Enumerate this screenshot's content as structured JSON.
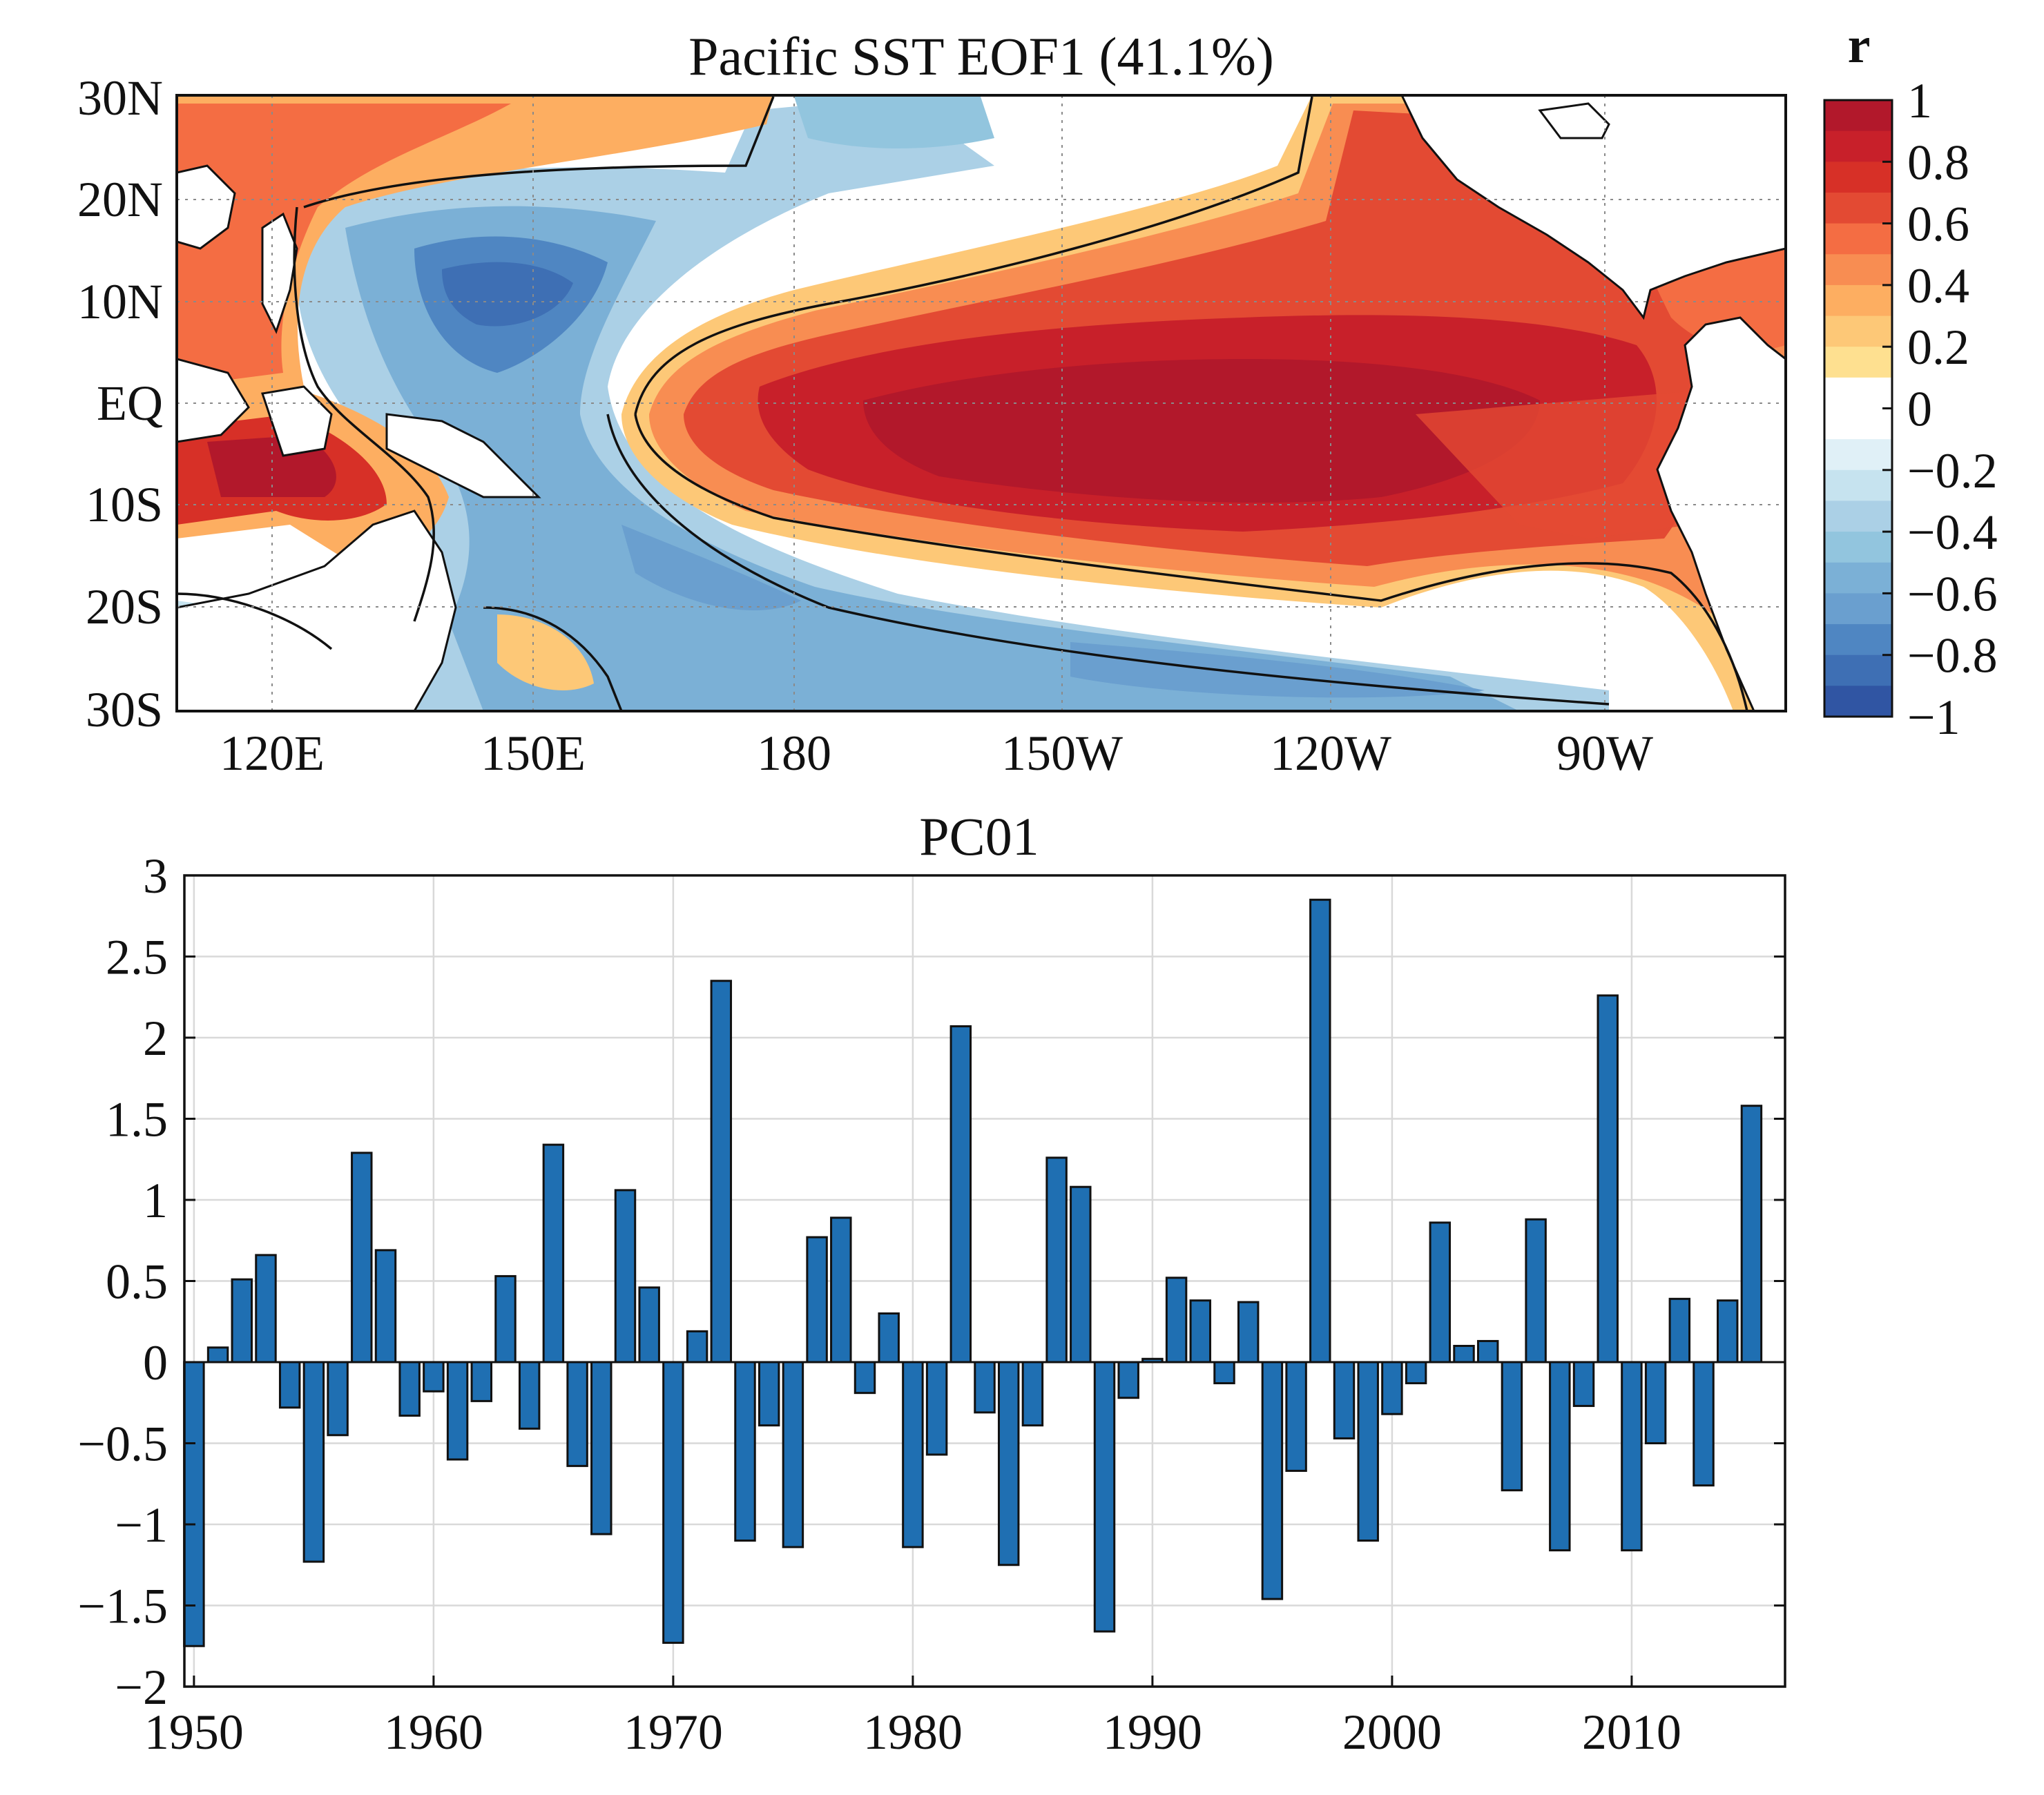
{
  "chart_data": [
    {
      "type": "heatmap",
      "title": "Pacific SST EOF1 (41.1%)",
      "xlabel": "",
      "ylabel": "",
      "x_tick_labels": [
        "120E",
        "150E",
        "180",
        "150W",
        "120W",
        "90W"
      ],
      "x_ticks_deg_east": [
        120,
        150,
        180,
        210,
        240,
        270
      ],
      "y_tick_labels": [
        "30N",
        "20N",
        "10N",
        "EQ",
        "10S",
        "20S",
        "30S"
      ],
      "y_ticks_deg": [
        30,
        20,
        10,
        0,
        -10,
        -20,
        -30
      ],
      "xlim_deg_east": [
        110,
        290
      ],
      "ylim_deg": [
        -30,
        30
      ],
      "colorbar": {
        "label": "r",
        "tick_labels": [
          "1",
          "0.8",
          "0.6",
          "0.4",
          "0.2",
          "0",
          "−0.2",
          "−0.4",
          "−0.6",
          "−0.8",
          "−1"
        ],
        "tick_values": [
          1,
          0.8,
          0.6,
          0.4,
          0.2,
          0,
          -0.2,
          -0.4,
          -0.6,
          -0.8,
          -1
        ],
        "colors_top_to_bottom": [
          "#b2182b",
          "#c8202a",
          "#d73027",
          "#e34a33",
          "#f46d43",
          "#f88d52",
          "#fdae61",
          "#fdc877",
          "#fee090",
          "#ffffff",
          "#ffffff",
          "#e0f0f7",
          "#c6e3ef",
          "#abd0e6",
          "#92c5de",
          "#7bb0d6",
          "#6a9fcf",
          "#4f86c2",
          "#3e6fb4",
          "#3055a3"
        ]
      },
      "grid": true,
      "pattern": "El Nino: strong positive correlation over central/eastern equatorial Pacific, negative horseshoe in western Pacific"
    },
    {
      "type": "bar",
      "title": "PC01",
      "xlabel": "",
      "ylabel": "",
      "x": [
        1950,
        1951,
        1952,
        1953,
        1954,
        1955,
        1956,
        1957,
        1958,
        1959,
        1960,
        1961,
        1962,
        1963,
        1964,
        1965,
        1966,
        1967,
        1968,
        1969,
        1970,
        1971,
        1972,
        1973,
        1974,
        1975,
        1976,
        1977,
        1978,
        1979,
        1980,
        1981,
        1982,
        1983,
        1984,
        1985,
        1986,
        1987,
        1988,
        1989,
        1990,
        1991,
        1992,
        1993,
        1994,
        1995,
        1996,
        1997,
        1998,
        1999,
        2000,
        2001,
        2002,
        2003,
        2004,
        2005,
        2006,
        2007,
        2008,
        2009,
        2010,
        2011,
        2012,
        2013,
        2014,
        2015
      ],
      "values": [
        -1.75,
        0.09,
        0.51,
        0.66,
        -0.28,
        -1.23,
        -0.45,
        1.29,
        0.69,
        -0.33,
        -0.18,
        -0.6,
        -0.24,
        0.53,
        -0.41,
        1.34,
        -0.64,
        -1.06,
        1.06,
        0.46,
        -1.73,
        0.19,
        2.35,
        -1.1,
        -0.39,
        -1.14,
        0.77,
        0.89,
        -0.19,
        0.3,
        -1.14,
        -0.57,
        2.07,
        -0.31,
        -1.25,
        -0.39,
        1.26,
        1.08,
        -1.66,
        -0.22,
        0.02,
        0.52,
        0.38,
        -0.13,
        0.37,
        -1.46,
        -0.67,
        2.85,
        -0.47,
        -1.1,
        -0.32,
        -0.13,
        0.86,
        0.1,
        0.13,
        -0.79,
        0.88,
        -1.16,
        -0.27,
        2.26,
        -1.16,
        -0.5,
        0.39,
        -0.76,
        0.38,
        1.58
      ],
      "x_tick_labels": [
        "1950",
        "1960",
        "1970",
        "1980",
        "1990",
        "2000",
        "2010"
      ],
      "x_ticks": [
        1950,
        1960,
        1970,
        1980,
        1990,
        2000,
        2010
      ],
      "y_tick_labels": [
        "3",
        "2.5",
        "2",
        "1.5",
        "1",
        "0.5",
        "0",
        "−0.5",
        "−1",
        "−1.5",
        "−2"
      ],
      "y_ticks": [
        3,
        2.5,
        2,
        1.5,
        1,
        0.5,
        0,
        -0.5,
        -1,
        -1.5,
        -2
      ],
      "xlim": [
        1949.6,
        2016.4
      ],
      "ylim": [
        -2,
        3
      ],
      "bar_color": "#1f6fb2",
      "grid": true
    }
  ]
}
